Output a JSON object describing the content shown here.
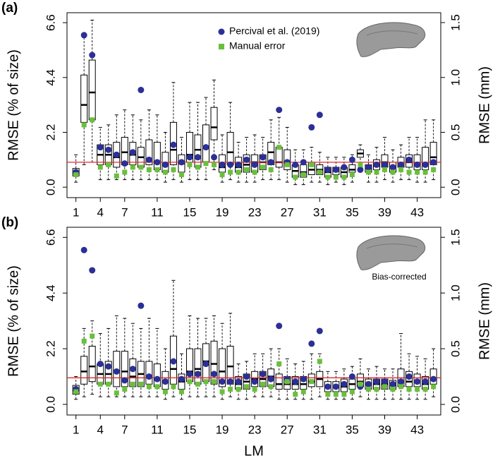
{
  "chart_data": [
    {
      "type": "boxplot",
      "panel_label": "(a)",
      "y_label": "RMSE (% of size)",
      "y2_label": "RMSE (mm)",
      "x": [
        1,
        2,
        3,
        4,
        5,
        6,
        7,
        8,
        9,
        10,
        11,
        12,
        13,
        14,
        15,
        16,
        17,
        18,
        19,
        20,
        21,
        22,
        23,
        24,
        25,
        26,
        27,
        28,
        29,
        30,
        31,
        32,
        33,
        34,
        35,
        36,
        37,
        38,
        39,
        40,
        41,
        42,
        43,
        44,
        45
      ],
      "xlim": [
        -0.1,
        45.9
      ],
      "xticks": [
        1,
        4,
        7,
        11,
        15,
        19,
        23,
        27,
        31,
        35,
        39,
        43
      ],
      "ylim": [
        -0.42,
        7.0
      ],
      "yticks": [
        {
          "value": 0,
          "label": "0.0"
        },
        2.2,
        4.4,
        6.6
      ],
      "y2lim": [
        -0.095,
        1.59
      ],
      "y2ticks": [
        {
          "value": 0,
          "label": "0.0"
        },
        0.5,
        {
          "value": 1,
          "label": "1.0"
        },
        1.5
      ],
      "hline": 1.0,
      "hline_color": "#e8282b",
      "boxes": [
        [
          0.2,
          0.45,
          0.6,
          0.75,
          1.3
        ],
        [
          0.9,
          2.6,
          3.3,
          4.5,
          6.0
        ],
        [
          1.0,
          2.7,
          3.8,
          5.1,
          6.7
        ],
        [
          0.3,
          0.9,
          1.3,
          1.7,
          2.4
        ],
        [
          0.3,
          0.9,
          1.3,
          1.7,
          2.5
        ],
        [
          0.3,
          0.8,
          1.2,
          1.8,
          2.9
        ],
        [
          0.3,
          0.9,
          1.4,
          2.0,
          3.1
        ],
        [
          0.3,
          0.9,
          1.3,
          1.8,
          2.9
        ],
        [
          0.3,
          0.8,
          1.2,
          1.6,
          2.7
        ],
        [
          0.3,
          0.9,
          1.1,
          1.9,
          3.1
        ],
        [
          0.3,
          0.7,
          1.0,
          1.8,
          2.9
        ],
        [
          0.2,
          0.6,
          0.9,
          1.4,
          2.2
        ],
        [
          0.3,
          0.9,
          1.5,
          2.6,
          4.2
        ],
        [
          0.2,
          0.6,
          0.95,
          1.3,
          2.0
        ],
        [
          0.3,
          1.0,
          1.3,
          2.2,
          3.4
        ],
        [
          0.3,
          0.8,
          1.5,
          2.1,
          3.4
        ],
        [
          0.3,
          1.0,
          1.6,
          2.5,
          3.6
        ],
        [
          0.7,
          1.9,
          2.4,
          3.2,
          4.3
        ],
        [
          0.2,
          0.6,
          0.8,
          1.3,
          2.1
        ],
        [
          0.3,
          0.9,
          1.4,
          2.2,
          3.4
        ],
        [
          0.2,
          0.6,
          0.8,
          1.2,
          1.8
        ],
        [
          0.2,
          0.6,
          0.9,
          1.3,
          2.0
        ],
        [
          0.2,
          0.6,
          1.0,
          1.3,
          2.1
        ],
        [
          0.3,
          0.7,
          1.0,
          1.3,
          2.0
        ],
        [
          0.3,
          0.9,
          1.4,
          1.8,
          2.7
        ],
        [
          0.3,
          0.8,
          1.0,
          1.6,
          2.8
        ],
        [
          0.2,
          0.7,
          1.0,
          1.5,
          2.4
        ],
        [
          0.1,
          0.4,
          0.65,
          0.9,
          1.5
        ],
        [
          0.1,
          0.4,
          0.6,
          0.9,
          1.5
        ],
        [
          0.2,
          0.5,
          0.7,
          1.0,
          1.6
        ],
        [
          0.2,
          0.5,
          0.7,
          0.9,
          1.4
        ],
        [
          0.1,
          0.4,
          0.6,
          0.8,
          1.2
        ],
        [
          0.2,
          0.5,
          0.65,
          0.8,
          1.2
        ],
        [
          0.1,
          0.4,
          0.6,
          0.8,
          1.2
        ],
        [
          0.2,
          0.6,
          0.7,
          0.9,
          1.3
        ],
        [
          0.8,
          1.2,
          1.35,
          1.5,
          1.7
        ],
        [
          0.2,
          0.6,
          0.75,
          0.9,
          1.3
        ],
        [
          0.2,
          0.7,
          0.85,
          1.1,
          1.6
        ],
        [
          0.3,
          0.8,
          1.0,
          1.3,
          2.0
        ],
        [
          0.2,
          0.6,
          0.8,
          1.0,
          1.5
        ],
        [
          0.3,
          0.8,
          0.9,
          1.2,
          1.7
        ],
        [
          0.3,
          0.8,
          1.0,
          1.3,
          2.0
        ],
        [
          0.2,
          0.7,
          0.9,
          1.3,
          2.0
        ],
        [
          0.2,
          0.7,
          0.9,
          1.6,
          2.7
        ],
        [
          0.3,
          0.9,
          1.2,
          1.8,
          2.7
        ]
      ],
      "series": [
        {
          "name": "Percival et al. (2019)",
          "color": "#2b2f96",
          "marker": "circle",
          "values": [
            0.6,
            6.1,
            5.3,
            1.6,
            1.5,
            1.3,
            0.95,
            1.4,
            3.9,
            1.1,
            1.0,
            0.9,
            1.7,
            1.0,
            1.2,
            1.2,
            1.6,
            1.2,
            0.9,
            0.9,
            0.9,
            1.1,
            0.9,
            1.2,
            1.0,
            3.1,
            1.0,
            0.9,
            1.0,
            2.4,
            2.9,
            0.7,
            0.7,
            0.8,
            1.1,
            0.7,
            0.8,
            0.9,
            0.9,
            0.8,
            0.9,
            1.1,
            0.9,
            0.9,
            1.0
          ]
        },
        {
          "name": "Manual error",
          "color": "#6abf3b",
          "marker": "square",
          "values": [
            0.5,
            2.5,
            2.7,
            0.8,
            0.9,
            0.45,
            0.6,
            0.8,
            0.8,
            0.7,
            0.7,
            0.6,
            0.7,
            0.5,
            0.9,
            0.8,
            0.95,
            0.9,
            0.5,
            0.6,
            0.6,
            0.7,
            0.6,
            0.8,
            0.7,
            1.6,
            0.9,
            0.4,
            0.5,
            0.9,
            0.6,
            0.4,
            0.4,
            0.4,
            0.5,
            0.9,
            0.6,
            0.6,
            0.7,
            0.6,
            0.7,
            0.6,
            0.6,
            0.6,
            0.7
          ]
        }
      ]
    },
    {
      "type": "boxplot",
      "panel_label": "(b)",
      "y_label": "RMSE (% of size)",
      "y2_label": "RMSE (mm)",
      "x_label": "LM",
      "annotation": "Bias-corrected",
      "x": [
        1,
        2,
        3,
        4,
        5,
        6,
        7,
        8,
        9,
        10,
        11,
        12,
        13,
        14,
        15,
        16,
        17,
        18,
        19,
        20,
        21,
        22,
        23,
        24,
        25,
        26,
        27,
        28,
        29,
        30,
        31,
        32,
        33,
        34,
        35,
        36,
        37,
        38,
        39,
        40,
        41,
        42,
        43,
        44,
        45
      ],
      "xlim": [
        -0.1,
        45.9
      ],
      "xticks": [
        1,
        4,
        7,
        11,
        15,
        19,
        23,
        27,
        31,
        35,
        39,
        43
      ],
      "ylim": [
        -0.42,
        7.0
      ],
      "yticks": [
        {
          "value": 0,
          "label": "0.0"
        },
        2.2,
        4.4,
        6.6
      ],
      "y2lim": [
        -0.095,
        1.59
      ],
      "y2ticks": [
        {
          "value": 0,
          "label": "0.0"
        },
        0.5,
        {
          "value": 1,
          "label": "1.0"
        },
        1.5
      ],
      "hline": 1.05,
      "hline_color": "#e8282b",
      "boxes": [
        [
          0.2,
          0.4,
          0.55,
          0.75,
          1.1
        ],
        [
          0.3,
          0.8,
          1.3,
          1.9,
          3.0
        ],
        [
          0.4,
          0.9,
          1.5,
          2.3,
          3.3
        ],
        [
          0.3,
          0.8,
          1.2,
          1.6,
          2.8
        ],
        [
          0.3,
          0.8,
          1.2,
          1.7,
          3.0
        ],
        [
          0.3,
          0.7,
          1.3,
          2.1,
          3.5
        ],
        [
          0.3,
          0.7,
          1.3,
          2.1,
          3.4
        ],
        [
          0.3,
          0.7,
          1.1,
          1.8,
          3.2
        ],
        [
          0.3,
          0.7,
          1.2,
          1.7,
          3.0
        ],
        [
          0.3,
          0.8,
          1.1,
          1.7,
          3.4
        ],
        [
          0.3,
          0.7,
          1.0,
          1.6,
          3.0
        ],
        [
          0.2,
          0.6,
          0.9,
          1.3,
          2.2
        ],
        [
          0.3,
          0.8,
          1.4,
          2.7,
          4.9
        ],
        [
          0.2,
          0.6,
          0.9,
          1.2,
          2.0
        ],
        [
          0.3,
          0.9,
          1.3,
          2.2,
          3.5
        ],
        [
          0.3,
          0.8,
          1.4,
          2.2,
          3.4
        ],
        [
          0.3,
          0.9,
          1.7,
          2.4,
          3.4
        ],
        [
          0.3,
          0.8,
          1.6,
          2.5,
          3.5
        ],
        [
          0.2,
          0.7,
          1.3,
          2.2,
          3.2
        ],
        [
          0.3,
          0.8,
          1.5,
          2.3,
          3.6
        ],
        [
          0.2,
          0.6,
          0.8,
          1.1,
          1.6
        ],
        [
          0.2,
          0.6,
          0.9,
          1.2,
          1.7
        ],
        [
          0.3,
          0.7,
          1.0,
          1.3,
          2.0
        ],
        [
          0.3,
          0.7,
          1.0,
          1.3,
          2.0
        ],
        [
          0.3,
          0.7,
          1.1,
          1.4,
          2.2
        ],
        [
          0.2,
          0.6,
          0.8,
          1.2,
          2.2
        ],
        [
          0.2,
          0.6,
          0.8,
          1.1,
          1.8
        ],
        [
          0.2,
          0.6,
          0.8,
          1.1,
          1.6
        ],
        [
          0.2,
          0.6,
          0.8,
          1.1,
          1.7
        ],
        [
          0.2,
          0.7,
          0.9,
          1.2,
          2.0
        ],
        [
          0.3,
          0.7,
          1.0,
          1.3,
          2.0
        ],
        [
          0.2,
          0.5,
          0.7,
          0.9,
          1.3
        ],
        [
          0.2,
          0.5,
          0.7,
          0.9,
          1.3
        ],
        [
          0.2,
          0.5,
          0.7,
          1.0,
          1.4
        ],
        [
          0.2,
          0.6,
          0.8,
          1.0,
          1.5
        ],
        [
          0.3,
          0.7,
          0.9,
          1.2,
          1.8
        ],
        [
          0.2,
          0.6,
          0.8,
          1.0,
          1.4
        ],
        [
          0.2,
          0.6,
          0.8,
          1.0,
          1.5
        ],
        [
          0.2,
          0.6,
          0.8,
          1.0,
          1.4
        ],
        [
          0.2,
          0.6,
          0.75,
          0.95,
          1.4
        ],
        [
          0.2,
          0.7,
          0.9,
          1.4,
          2.8
        ],
        [
          0.2,
          0.7,
          0.9,
          1.3,
          2.0
        ],
        [
          0.2,
          0.7,
          0.9,
          1.2,
          1.9
        ],
        [
          0.2,
          0.6,
          0.8,
          1.1,
          1.8
        ],
        [
          0.3,
          0.8,
          1.0,
          1.4,
          2.2
        ]
      ],
      "series": [
        {
          "color": "#2b2f96",
          "marker": "circle",
          "values": [
            0.6,
            6.1,
            5.3,
            1.6,
            1.5,
            1.3,
            0.95,
            1.4,
            3.9,
            1.1,
            1.0,
            0.9,
            1.7,
            1.0,
            1.2,
            1.2,
            1.6,
            1.2,
            0.9,
            0.9,
            0.9,
            1.1,
            0.9,
            1.2,
            1.0,
            3.1,
            1.0,
            0.9,
            1.0,
            2.4,
            2.9,
            0.7,
            0.7,
            0.8,
            1.1,
            0.7,
            0.8,
            0.9,
            0.9,
            0.8,
            0.9,
            1.1,
            0.9,
            0.9,
            1.0
          ]
        },
        {
          "color": "#6abf3b",
          "marker": "square",
          "values": [
            0.5,
            2.5,
            2.7,
            0.8,
            0.8,
            0.45,
            0.6,
            0.8,
            0.8,
            0.7,
            0.7,
            0.5,
            0.7,
            0.5,
            0.9,
            0.8,
            0.9,
            0.9,
            0.5,
            0.6,
            0.6,
            0.7,
            0.6,
            0.8,
            0.7,
            1.6,
            0.9,
            0.4,
            0.5,
            0.9,
            1.7,
            0.4,
            0.4,
            0.4,
            0.5,
            0.8,
            0.6,
            0.6,
            0.7,
            0.6,
            0.7,
            0.6,
            0.6,
            0.6,
            0.7
          ]
        }
      ]
    }
  ]
}
